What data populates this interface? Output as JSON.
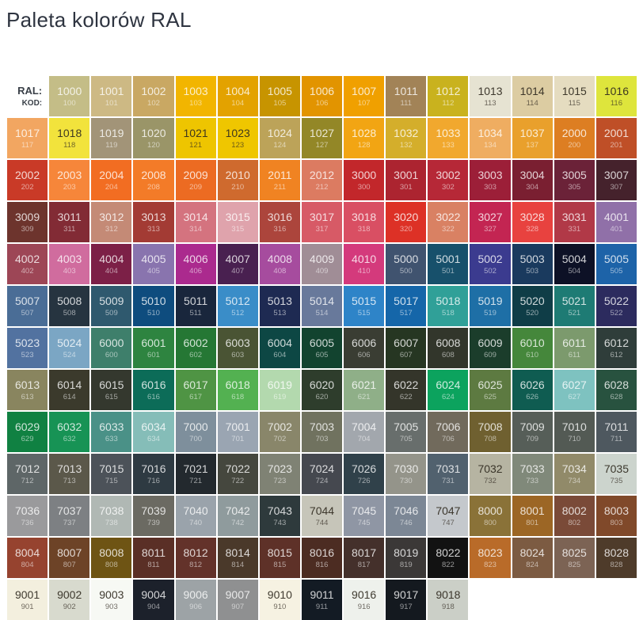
{
  "title": "Paleta kolorów RAL",
  "legend": {
    "ral_label": "RAL:",
    "kod_label": "KOD:"
  },
  "chart_data": {
    "type": "table",
    "description": "RAL colour palette swatch grid; every cell shows the RAL number (top) and shop code (bottom) on its colour",
    "columns": 15,
    "cell_format": [
      "ral",
      "code",
      "hex",
      "dark_text"
    ],
    "cells": [
      [
        "1000",
        "100",
        "#C4BD87",
        0
      ],
      [
        "1001",
        "101",
        "#CDB984",
        0
      ],
      [
        "1002",
        "102",
        "#C9A863",
        0
      ],
      [
        "1003",
        "103",
        "#F2B500",
        0
      ],
      [
        "1004",
        "104",
        "#E3A200",
        0
      ],
      [
        "1005",
        "105",
        "#C79400",
        0
      ],
      [
        "1006",
        "106",
        "#E29400",
        0
      ],
      [
        "1007",
        "107",
        "#F0A000",
        0
      ],
      [
        "1011",
        "111",
        "#A28357",
        0
      ],
      [
        "1012",
        "112",
        "#C9B21E",
        0
      ],
      [
        "1013",
        "113",
        "#E6E3D2",
        1
      ],
      [
        "1014",
        "114",
        "#DCCCA2",
        1
      ],
      [
        "1015",
        "115",
        "#E5DCC0",
        1
      ],
      [
        "1016",
        "116",
        "#DEE53C",
        1
      ],
      [
        "1017",
        "117",
        "#F2A661",
        0
      ],
      [
        "1018",
        "118",
        "#F2E33C",
        1
      ],
      [
        "1019",
        "119",
        "#A29478",
        0
      ],
      [
        "1020",
        "120",
        "#9A9568",
        0
      ],
      [
        "1021",
        "121",
        "#EEC500",
        1
      ],
      [
        "1023",
        "123",
        "#EFC600",
        1
      ],
      [
        "1024",
        "124",
        "#BCA359",
        0
      ],
      [
        "1027",
        "127",
        "#938727",
        0
      ],
      [
        "1028",
        "128",
        "#F2A513",
        0
      ],
      [
        "1032",
        "132",
        "#D4AE2B",
        0
      ],
      [
        "1033",
        "133",
        "#F1A82E",
        0
      ],
      [
        "1034",
        "134",
        "#EFAD61",
        0
      ],
      [
        "1037",
        "137",
        "#E9A02C",
        0
      ],
      [
        "2000",
        "200",
        "#DD7E22",
        0
      ],
      [
        "2001",
        "201",
        "#BF4F27",
        0
      ],
      [
        "2002",
        "202",
        "#C93A27",
        0
      ],
      [
        "2003",
        "203",
        "#F6863A",
        0
      ],
      [
        "2004",
        "204",
        "#F26D22",
        0
      ],
      [
        "2008",
        "208",
        "#F37B28",
        0
      ],
      [
        "2009",
        "209",
        "#EC6B22",
        0
      ],
      [
        "2010",
        "210",
        "#CF6A2E",
        0
      ],
      [
        "2011",
        "211",
        "#F08322",
        0
      ],
      [
        "2012",
        "212",
        "#DC7B61",
        0
      ],
      [
        "3000",
        "300",
        "#C2272B",
        0
      ],
      [
        "3001",
        "301",
        "#AC2430",
        0
      ],
      [
        "3002",
        "302",
        "#B62837",
        0
      ],
      [
        "3003",
        "303",
        "#9C1F38",
        0
      ],
      [
        "3004",
        "304",
        "#7A1F31",
        0
      ],
      [
        "3005",
        "305",
        "#6B2238",
        0
      ],
      [
        "3007",
        "307",
        "#45222C",
        0
      ],
      [
        "3009",
        "309",
        "#6D342D",
        0
      ],
      [
        "3011",
        "311",
        "#822B35",
        0
      ],
      [
        "3012",
        "312",
        "#C48A76",
        0
      ],
      [
        "3013",
        "313",
        "#A33B34",
        0
      ],
      [
        "3014",
        "314",
        "#D4737F",
        0
      ],
      [
        "3015",
        "315",
        "#DFA3AC",
        0
      ],
      [
        "3016",
        "316",
        "#AC453C",
        0
      ],
      [
        "3017",
        "317",
        "#D75A66",
        0
      ],
      [
        "3018",
        "318",
        "#D94F63",
        0
      ],
      [
        "3020",
        "320",
        "#DD3126",
        0
      ],
      [
        "3022",
        "322",
        "#D98163",
        0
      ],
      [
        "3027",
        "327",
        "#C32552",
        0
      ],
      [
        "3028",
        "328",
        "#E8423F",
        0
      ],
      [
        "3031",
        "331",
        "#B13947",
        0
      ],
      [
        "4001",
        "401",
        "#9070A8",
        0
      ],
      [
        "4002",
        "402",
        "#9D4656",
        0
      ],
      [
        "4003",
        "403",
        "#D06C9E",
        0
      ],
      [
        "4004",
        "404",
        "#7C2047",
        0
      ],
      [
        "4005",
        "405",
        "#8974AE",
        0
      ],
      [
        "4006",
        "406",
        "#AB2A8E",
        0
      ],
      [
        "4007",
        "407",
        "#492050",
        0
      ],
      [
        "4008",
        "408",
        "#A64C9E",
        0
      ],
      [
        "4009",
        "409",
        "#A08D96",
        0
      ],
      [
        "4010",
        "410",
        "#D43A7C",
        0
      ],
      [
        "5000",
        "500",
        "#40536F",
        0
      ],
      [
        "5001",
        "501",
        "#17506B",
        0
      ],
      [
        "5002",
        "502",
        "#3B3B8F",
        0
      ],
      [
        "5003",
        "503",
        "#1A3A5E",
        0
      ],
      [
        "5004",
        "504",
        "#0D1126",
        0
      ],
      [
        "5005",
        "505",
        "#1D63A8",
        0
      ],
      [
        "5007",
        "507",
        "#4A6D96",
        0
      ],
      [
        "5008",
        "508",
        "#263440",
        0
      ],
      [
        "5009",
        "509",
        "#2F596E",
        0
      ],
      [
        "5010",
        "510",
        "#0E4C7E",
        0
      ],
      [
        "5011",
        "511",
        "#19263C",
        0
      ],
      [
        "5012",
        "512",
        "#3A8DC8",
        0
      ],
      [
        "5013",
        "513",
        "#1E2A52",
        0
      ],
      [
        "5014",
        "514",
        "#68799B",
        0
      ],
      [
        "5015",
        "515",
        "#2E84C8",
        0
      ],
      [
        "5017",
        "517",
        "#1566A9",
        0
      ],
      [
        "5018",
        "518",
        "#30A098",
        0
      ],
      [
        "5019",
        "519",
        "#1E6FA6",
        0
      ],
      [
        "5020",
        "520",
        "#0F3D47",
        0
      ],
      [
        "5021",
        "521",
        "#1E7B74",
        0
      ],
      [
        "5022",
        "522",
        "#2C2B5E",
        0
      ],
      [
        "5023",
        "523",
        "#5272A0",
        0
      ],
      [
        "5024",
        "524",
        "#7BA6C4",
        0
      ],
      [
        "6000",
        "600",
        "#3E7F6B",
        0
      ],
      [
        "6001",
        "601",
        "#2E8440",
        0
      ],
      [
        "6002",
        "602",
        "#257734",
        0
      ],
      [
        "6003",
        "603",
        "#4A5434",
        0
      ],
      [
        "6004",
        "604",
        "#0D4744",
        0
      ],
      [
        "6005",
        "605",
        "#12432F",
        0
      ],
      [
        "6006",
        "606",
        "#3A3D33",
        0
      ],
      [
        "6007",
        "607",
        "#263622",
        0
      ],
      [
        "6008",
        "608",
        "#32362B",
        0
      ],
      [
        "6009",
        "609",
        "#1B3D2B",
        0
      ],
      [
        "6010",
        "610",
        "#45873B",
        0
      ],
      [
        "6011",
        "611",
        "#7C9A6D",
        0
      ],
      [
        "6012",
        "612",
        "#2F3D3A",
        0
      ],
      [
        "6013",
        "613",
        "#89855F",
        0
      ],
      [
        "6014",
        "614",
        "#3B3A2C",
        0
      ],
      [
        "6015",
        "615",
        "#34382E",
        0
      ],
      [
        "6016",
        "616",
        "#0C6C58",
        0
      ],
      [
        "6017",
        "617",
        "#4F9444",
        0
      ],
      [
        "6018",
        "618",
        "#53B151",
        0
      ],
      [
        "6019",
        "619",
        "#B3D9AE",
        0
      ],
      [
        "6020",
        "620",
        "#2E3D2C",
        0
      ],
      [
        "6021",
        "621",
        "#8FAF88",
        0
      ],
      [
        "6022",
        "622",
        "#34352A",
        0
      ],
      [
        "6024",
        "624",
        "#0CA35E",
        0
      ],
      [
        "6025",
        "625",
        "#5D7A41",
        0
      ],
      [
        "6026",
        "626",
        "#0F5C51",
        0
      ],
      [
        "6027",
        "627",
        "#7EC2C0",
        0
      ],
      [
        "6028",
        "628",
        "#28523F",
        0
      ],
      [
        "6029",
        "629",
        "#108142",
        0
      ],
      [
        "6032",
        "632",
        "#179355",
        0
      ],
      [
        "6033",
        "633",
        "#4A9187",
        0
      ],
      [
        "6034",
        "634",
        "#85BDB8",
        0
      ],
      [
        "7000",
        "700",
        "#7E8F9C",
        0
      ],
      [
        "7001",
        "701",
        "#9AA5B2",
        0
      ],
      [
        "7002",
        "702",
        "#89866A",
        0
      ],
      [
        "7003",
        "703",
        "#70725F",
        0
      ],
      [
        "7004",
        "704",
        "#A2A7AD",
        0
      ],
      [
        "7005",
        "705",
        "#686E6C",
        0
      ],
      [
        "7006",
        "706",
        "#716A5C",
        0
      ],
      [
        "7008",
        "708",
        "#6F6030",
        0
      ],
      [
        "7009",
        "709",
        "#565E58",
        0
      ],
      [
        "7010",
        "710",
        "#535A54",
        0
      ],
      [
        "7011",
        "711",
        "#4E585F",
        0
      ],
      [
        "7012",
        "712",
        "#5E6667",
        0
      ],
      [
        "7013",
        "713",
        "#5B584A",
        0
      ],
      [
        "7015",
        "715",
        "#4C5259",
        0
      ],
      [
        "7016",
        "716",
        "#2E3A42",
        0
      ],
      [
        "7021",
        "721",
        "#23292E",
        0
      ],
      [
        "7022",
        "722",
        "#45473E",
        0
      ],
      [
        "7023",
        "723",
        "#7F8274",
        0
      ],
      [
        "7024",
        "724",
        "#45484F",
        0
      ],
      [
        "7026",
        "726",
        "#30414A",
        0
      ],
      [
        "7030",
        "730",
        "#94948A",
        0
      ],
      [
        "7031",
        "731",
        "#51616E",
        0
      ],
      [
        "7032",
        "732",
        "#B6B4A2",
        1
      ],
      [
        "7033",
        "733",
        "#80897A",
        0
      ],
      [
        "7034",
        "734",
        "#918A69",
        0
      ],
      [
        "7035",
        "735",
        "#CCD4CD",
        1
      ],
      [
        "7036",
        "736",
        "#9A9A9C",
        0
      ],
      [
        "7037",
        "737",
        "#7D8083",
        0
      ],
      [
        "7038",
        "738",
        "#B0B8B4",
        0
      ],
      [
        "7039",
        "739",
        "#6B6A62",
        0
      ],
      [
        "7040",
        "740",
        "#9AA3AB",
        0
      ],
      [
        "7042",
        "742",
        "#8F9B9D",
        0
      ],
      [
        "7043",
        "743",
        "#2E3A3C",
        0
      ],
      [
        "7044",
        "744",
        "#C6C5B9",
        1
      ],
      [
        "7045",
        "745",
        "#8F96A4",
        0
      ],
      [
        "7046",
        "746",
        "#7C8795",
        0
      ],
      [
        "7047",
        "747",
        "#C4C8CC",
        1
      ],
      [
        "8000",
        "800",
        "#8A7238",
        0
      ],
      [
        "8001",
        "801",
        "#9C6625",
        0
      ],
      [
        "8002",
        "802",
        "#7A4A38",
        0
      ],
      [
        "8003",
        "803",
        "#80492A",
        0
      ],
      [
        "8004",
        "804",
        "#96432F",
        0
      ],
      [
        "8007",
        "807",
        "#6D4327",
        0
      ],
      [
        "8008",
        "808",
        "#6E5414",
        0
      ],
      [
        "8011",
        "811",
        "#5A2F26",
        0
      ],
      [
        "8012",
        "812",
        "#63322A",
        0
      ],
      [
        "8014",
        "814",
        "#4A392A",
        0
      ],
      [
        "8015",
        "815",
        "#5E3128",
        0
      ],
      [
        "8016",
        "816",
        "#4C2C22",
        0
      ],
      [
        "8017",
        "817",
        "#44302B",
        0
      ],
      [
        "8019",
        "819",
        "#3B3837",
        0
      ],
      [
        "8022",
        "822",
        "#121212",
        0
      ],
      [
        "8023",
        "823",
        "#B96B29",
        0
      ],
      [
        "8024",
        "824",
        "#7C5B42",
        0
      ],
      [
        "8025",
        "825",
        "#7C6354",
        0
      ],
      [
        "8028",
        "828",
        "#4E3B2A",
        0
      ],
      [
        "9001",
        "901",
        "#F3EFDE",
        1
      ],
      [
        "9002",
        "902",
        "#D8DACE",
        1
      ],
      [
        "9003",
        "903",
        "#F7F9F4",
        1
      ],
      [
        "9004",
        "904",
        "#1C212B",
        0
      ],
      [
        "9006",
        "906",
        "#9DA3A6",
        0
      ],
      [
        "9007",
        "907",
        "#8F9091",
        0
      ],
      [
        "9010",
        "910",
        "#F6F2E2",
        1
      ],
      [
        "9011",
        "911",
        "#131B24",
        0
      ],
      [
        "9016",
        "916",
        "#EEF1EC",
        1
      ],
      [
        "9017",
        "917",
        "#14191F",
        0
      ],
      [
        "9018",
        "918",
        "#CBCFC7",
        1
      ]
    ]
  }
}
